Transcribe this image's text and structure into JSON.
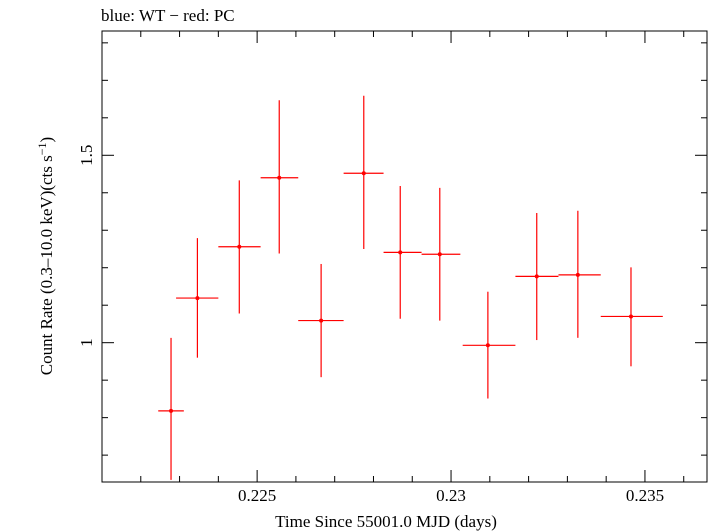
{
  "chart_data": {
    "type": "scatter",
    "title": "blue: WT − red: PC",
    "xlabel": "Time Since 55001.0 MJD (days)",
    "ylabel_main": "Count Rate (0.3–10.0 keV)(cts s",
    "ylabel_sup": "−1",
    "ylabel_close": ")",
    "xlim": [
      0.221,
      0.2366
    ],
    "ylim": [
      0.6283,
      1.8316
    ],
    "x_ticks": [
      {
        "value": 0.225,
        "label": "0.225"
      },
      {
        "value": 0.23,
        "label": "0.23"
      },
      {
        "value": 0.235,
        "label": "0.235"
      }
    ],
    "y_ticks": [
      {
        "value": 1.0,
        "label": "1"
      },
      {
        "value": 1.5,
        "label": "1.5"
      }
    ],
    "series": [
      {
        "name": "PC",
        "color": "#ff0000",
        "points": [
          {
            "x": 0.22278,
            "xlo": 0.22245,
            "xhi": 0.22311,
            "y": 0.818,
            "ylo": 0.634,
            "yhi": 1.013
          },
          {
            "x": 0.22346,
            "xlo": 0.22291,
            "xhi": 0.224,
            "y": 1.119,
            "ylo": 0.96,
            "yhi": 1.279
          },
          {
            "x": 0.22454,
            "xlo": 0.224,
            "xhi": 0.22509,
            "y": 1.256,
            "ylo": 1.078,
            "yhi": 1.433
          },
          {
            "x": 0.22557,
            "xlo": 0.22509,
            "xhi": 0.22606,
            "y": 1.44,
            "ylo": 1.238,
            "yhi": 1.647
          },
          {
            "x": 0.22665,
            "xlo": 0.22606,
            "xhi": 0.22723,
            "y": 1.059,
            "ylo": 0.908,
            "yhi": 1.21
          },
          {
            "x": 0.22775,
            "xlo": 0.22723,
            "xhi": 0.22826,
            "y": 1.452,
            "ylo": 1.25,
            "yhi": 1.659
          },
          {
            "x": 0.22869,
            "xlo": 0.22826,
            "xhi": 0.22924,
            "y": 1.241,
            "ylo": 1.064,
            "yhi": 1.418
          },
          {
            "x": 0.22971,
            "xlo": 0.22924,
            "xhi": 0.23024,
            "y": 1.236,
            "ylo": 1.059,
            "yhi": 1.413
          },
          {
            "x": 0.23095,
            "xlo": 0.2303,
            "xhi": 0.23166,
            "y": 0.993,
            "ylo": 0.851,
            "yhi": 1.136
          },
          {
            "x": 0.23221,
            "xlo": 0.23166,
            "xhi": 0.23277,
            "y": 1.177,
            "ylo": 1.007,
            "yhi": 1.346
          },
          {
            "x": 0.23327,
            "xlo": 0.23277,
            "xhi": 0.23386,
            "y": 1.181,
            "ylo": 1.013,
            "yhi": 1.352
          },
          {
            "x": 0.23464,
            "xlo": 0.23386,
            "xhi": 0.23546,
            "y": 1.07,
            "ylo": 0.937,
            "yhi": 1.201
          }
        ]
      }
    ]
  }
}
